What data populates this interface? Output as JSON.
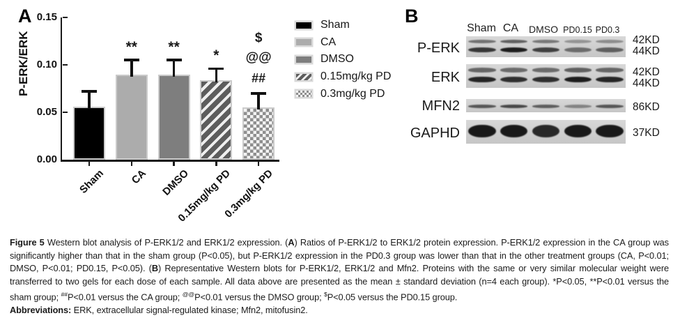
{
  "figure": {
    "panel_a_label": "A",
    "panel_b_label": "B"
  },
  "chart_data": {
    "type": "bar",
    "title": "",
    "xlabel": "",
    "ylabel": "P-ERK/ERK",
    "ylim": [
      0,
      0.15
    ],
    "yticks": [
      0.0,
      0.05,
      0.1,
      0.15
    ],
    "grid": false,
    "legend_position": "right",
    "categories": [
      "Sham",
      "CA",
      "DMSO",
      "0.15mg/kg PD",
      "0.3mg/kg PD"
    ],
    "values": [
      0.056,
      0.09,
      0.09,
      0.084,
      0.055
    ],
    "errors_upper": [
      0.016,
      0.015,
      0.015,
      0.012,
      0.015
    ],
    "significance": [
      [],
      [
        "**"
      ],
      [
        "**"
      ],
      [
        "*"
      ],
      [
        "$",
        "@@",
        "##"
      ]
    ],
    "bar_styles": [
      "black",
      "lightgray",
      "gray",
      "hatch",
      "checker"
    ],
    "colors": {
      "bar_black": "#000000",
      "bar_lightgray": "#acacac",
      "bar_gray": "#7e7e7e",
      "hatch_stripe": "#5d5d5d",
      "checker_gray": "#8e8e8e",
      "bar_outline": "#cbcbcb"
    }
  },
  "legend": {
    "items": [
      {
        "label": "Sham",
        "style": "black"
      },
      {
        "label": "CA",
        "style": "lightgray"
      },
      {
        "label": "DMSO",
        "style": "gray"
      },
      {
        "label": "0.15mg/kg PD",
        "style": "hatch"
      },
      {
        "label": "0.3mg/kg PD",
        "style": "checker"
      }
    ]
  },
  "blot": {
    "lane_labels": [
      "Sham",
      "CA",
      "DMSO",
      "PD0.15",
      "PD0.3"
    ],
    "rows": [
      {
        "label": "P-ERK",
        "mw": [
          "42KD",
          "44KD"
        ],
        "band_type": "doublet",
        "lane_intensities": [
          0.85,
          1.0,
          0.8,
          0.55,
          0.62
        ]
      },
      {
        "label": "ERK",
        "mw": [
          "42KD",
          "44KD"
        ],
        "band_type": "doublet",
        "lane_intensities": [
          0.95,
          0.9,
          0.9,
          1.0,
          0.95
        ]
      },
      {
        "label": "MFN2",
        "mw": [
          "86KD"
        ],
        "band_type": "single-thin",
        "lane_intensities": [
          0.8,
          0.9,
          0.75,
          0.5,
          0.8
        ]
      },
      {
        "label": "GAPHD",
        "mw": [
          "37KD"
        ],
        "band_type": "single-thick",
        "lane_intensities": [
          1.0,
          1.0,
          0.92,
          1.0,
          1.0
        ]
      }
    ]
  },
  "caption": {
    "paragraphs": [
      {
        "segments": [
          {
            "t": "Figure 5",
            "b": true
          },
          {
            "t": " Western blot analysis of P-ERK1/2 and ERK1/2 expression. ("
          },
          {
            "t": "A",
            "b": true
          },
          {
            "t": ") Ratios of P-ERK1/2 to ERK1/2 protein expression. P-ERK1/2 expression in the CA group was significantly higher than that in the sham group (P<0.05), but P-ERK1/2 expression in the PD0.3 group was lower than that in the other treatment groups (CA, P<0.01; DMSO, P<0.01; PD0.15, P<0.05). ("
          },
          {
            "t": "B",
            "b": true
          },
          {
            "t": ") Representative Western blots for P-ERK1/2, ERK1/2 and Mfn2. Proteins with the same or very similar molecular weight were transferred to two gels for each dose of each sample. All data above are presented as the mean ± standard deviation (n=4 each group). *P<0.05, **P<0.01 versus the sham group; "
          },
          {
            "t": "##",
            "sup": true
          },
          {
            "t": "P<0.01 versus the CA group; "
          },
          {
            "t": "@@",
            "sup": true
          },
          {
            "t": "P<0.01 versus the DMSO group; "
          },
          {
            "t": "$",
            "sup": true
          },
          {
            "t": "P<0.05 versus the PD0.15 group."
          }
        ]
      },
      {
        "segments": [
          {
            "t": "Abbreviations:",
            "b": true
          },
          {
            "t": " ERK, extracellular signal-regulated kinase; Mfn2, mitofusin2."
          }
        ]
      }
    ]
  }
}
